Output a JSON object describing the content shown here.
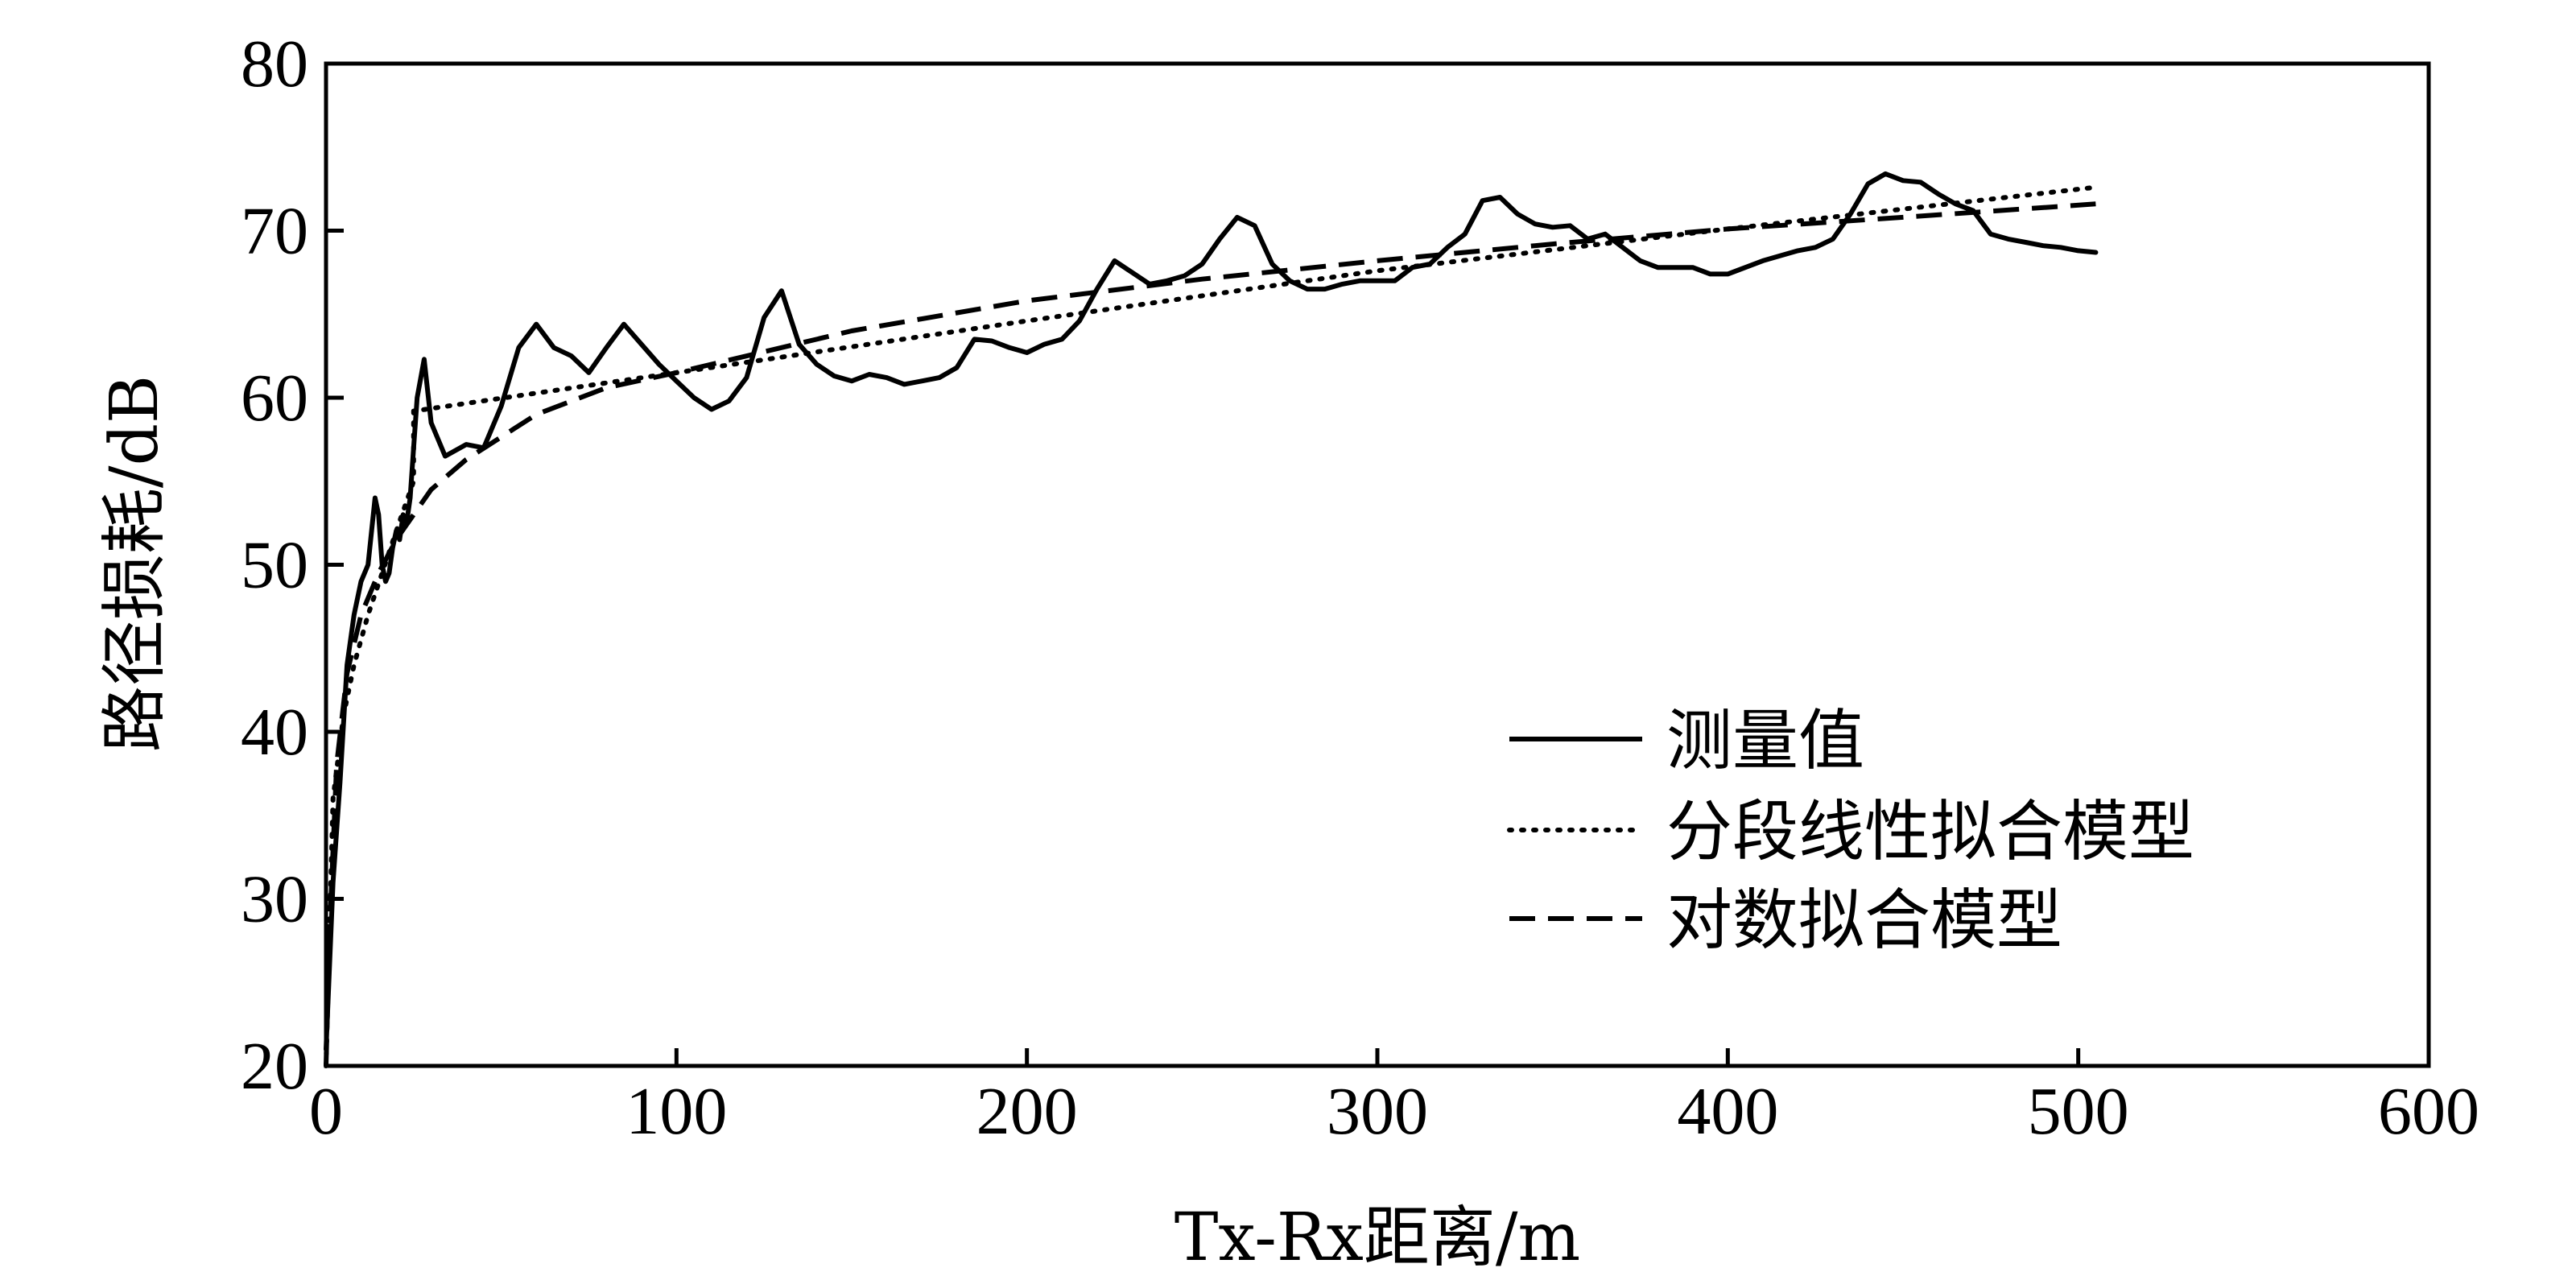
{
  "chart_data": {
    "type": "line",
    "title": "",
    "xlabel": "Tx-Rx距离/m",
    "ylabel": "路径损耗/dB",
    "xlim": [
      0,
      600
    ],
    "ylim": [
      20,
      80
    ],
    "xticks": [
      "0",
      "100",
      "200",
      "300",
      "400",
      "500",
      "600"
    ],
    "yticks": [
      "20",
      "30",
      "40",
      "50",
      "60",
      "70",
      "80"
    ],
    "grid": false,
    "legend_position": "lower-right",
    "series": [
      {
        "name": "测量值",
        "style": "solid",
        "color": "#000000",
        "x": [
          0,
          2,
          4,
          6,
          8,
          10,
          12,
          14,
          15,
          16,
          17,
          18,
          19,
          20,
          21,
          22,
          23,
          24,
          25,
          26,
          28,
          30,
          34,
          40,
          45,
          50,
          55,
          60,
          65,
          70,
          75,
          80,
          85,
          90,
          95,
          100,
          105,
          110,
          115,
          120,
          125,
          130,
          135,
          140,
          145,
          150,
          155,
          160,
          165,
          170,
          175,
          180,
          185,
          190,
          195,
          200,
          205,
          210,
          215,
          220,
          225,
          230,
          235,
          240,
          245,
          250,
          255,
          260,
          265,
          270,
          275,
          280,
          285,
          290,
          295,
          300,
          305,
          310,
          315,
          320,
          325,
          330,
          335,
          340,
          345,
          350,
          355,
          360,
          365,
          370,
          375,
          380,
          385,
          390,
          395,
          400,
          405,
          410,
          415,
          420,
          425,
          430,
          435,
          440,
          445,
          450,
          455,
          460,
          465,
          470,
          475,
          480,
          485,
          490,
          495,
          500,
          505
        ],
        "y": [
          21,
          31,
          37,
          44,
          47,
          49,
          50,
          54,
          53,
          50,
          49,
          49.5,
          51,
          52,
          51.5,
          53,
          52.5,
          54,
          57,
          60,
          62.3,
          58.5,
          56.5,
          57.2,
          57,
          59.5,
          63,
          64.4,
          63,
          62.5,
          61.5,
          63,
          64.4,
          63.2,
          62,
          61,
          60,
          59.3,
          59.8,
          61.2,
          64.8,
          66.4,
          63.2,
          62,
          61.3,
          61,
          61.4,
          61.2,
          60.8,
          61,
          61.2,
          61.8,
          63.5,
          63.4,
          63,
          62.7,
          63.2,
          63.5,
          64.6,
          66.5,
          68.2,
          67.5,
          66.8,
          67,
          67.3,
          68,
          69.5,
          70.8,
          70.3,
          68,
          67,
          66.5,
          66.5,
          66.8,
          67,
          67,
          67,
          67.8,
          68,
          69,
          69.8,
          71.8,
          72,
          71,
          70.4,
          70.2,
          70.3,
          69.5,
          69.8,
          69,
          68.2,
          67.8,
          67.8,
          67.8,
          67.4,
          67.4,
          67.8,
          68.2,
          68.5,
          68.8,
          69,
          69.5,
          71,
          72.8,
          73.4,
          73,
          72.9,
          72.2,
          71.6,
          71.2,
          69.8,
          69.5,
          69.3,
          69.1,
          69,
          68.8,
          68.7
        ]
      },
      {
        "name": "分段线性拟合模型",
        "style": "dotted",
        "color": "#000000",
        "x": [
          0,
          2,
          5,
          8,
          12,
          16,
          20,
          25,
          25,
          100,
          200,
          300,
          400,
          505
        ],
        "y": [
          20,
          36,
          41,
          44,
          47,
          49.5,
          52,
          55,
          59.2,
          61.5,
          64.6,
          67.6,
          70.1,
          72.6
        ]
      },
      {
        "name": "对数拟合模型",
        "style": "dashed",
        "color": "#000000",
        "x": [
          0,
          1,
          3,
          6,
          10,
          15,
          20,
          30,
          40,
          60,
          80,
          100,
          150,
          200,
          250,
          300,
          350,
          400,
          450,
          505
        ],
        "y": [
          20,
          28,
          38,
          43.5,
          47,
          49.5,
          51.5,
          54.5,
          56.3,
          59,
          60.6,
          61.5,
          64,
          65.8,
          67.1,
          68.2,
          69.2,
          70.1,
          70.8,
          71.6
        ]
      }
    ]
  }
}
